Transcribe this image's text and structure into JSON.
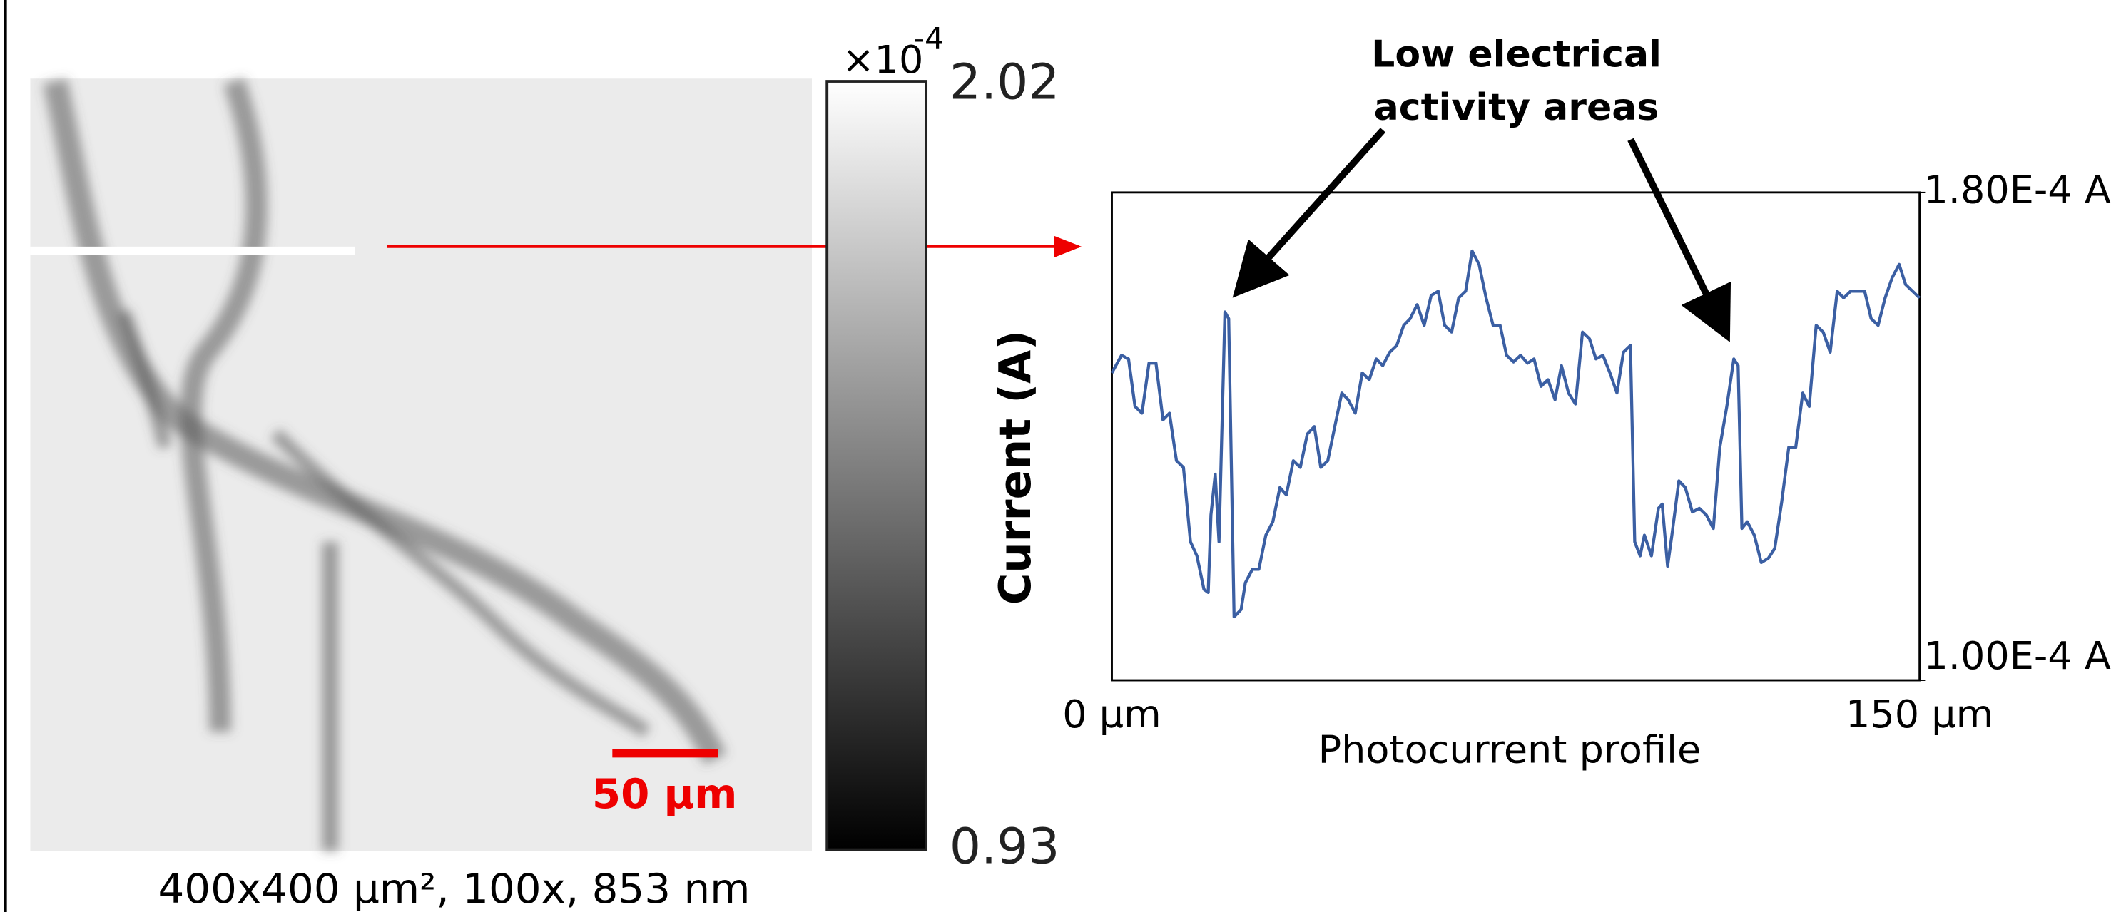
{
  "image": {
    "caption": "400x400 µm², 100x, 853 nm",
    "scale_bar": "50 µm"
  },
  "colorbar": {
    "multiplier": "×10",
    "exponent": "-4",
    "label": "Current (A)",
    "lim": [
      0.93,
      2.02
    ],
    "ticks": [
      0.93,
      2.02
    ]
  },
  "chart_data": {
    "type": "line",
    "xlabel": "Photocurrent profile",
    "annotation": [
      "Low electrical",
      "activity areas"
    ],
    "x": [
      0,
      1.8,
      3.1,
      4.3,
      5.6,
      6.9,
      8.2,
      9.5,
      10.7,
      12.0,
      13.3,
      14.6,
      15.8,
      17.1,
      17.9,
      18.4,
      19.2,
      19.9,
      21.0,
      21.7,
      22.7,
      24.0,
      24.8,
      26.1,
      27.3,
      28.6,
      29.9,
      31.2,
      32.4,
      33.7,
      35.0,
      36.3,
      37.6,
      38.8,
      40.1,
      41.4,
      42.7,
      43.9,
      45.2,
      46.5,
      47.8,
      49.1,
      50.3,
      51.6,
      52.9,
      54.2,
      55.4,
      56.7,
      58.0,
      59.3,
      60.6,
      61.8,
      63.1,
      64.4,
      65.7,
      66.9,
      68.2,
      69.5,
      70.8,
      72.1,
      73.3,
      74.6,
      75.9,
      77.2,
      78.4,
      79.7,
      81.0,
      82.3,
      83.5,
      84.8,
      86.1,
      87.4,
      88.7,
      89.9,
      91.2,
      92.5,
      93.8,
      95.0,
      96.3,
      97.1,
      98.1,
      98.9,
      100.2,
      101.5,
      102.2,
      103.2,
      104.0,
      105.3,
      106.5,
      107.8,
      109.1,
      110.4,
      111.7,
      112.9,
      114.2,
      115.5,
      116.3,
      117.0,
      118.0,
      119.3,
      120.6,
      121.9,
      123.1,
      124.4,
      125.7,
      127.0,
      128.3,
      129.5,
      130.8,
      132.1,
      133.4,
      134.7,
      135.9,
      137.2,
      138.5,
      139.8,
      141.0,
      142.3,
      143.6,
      144.9,
      146.2,
      147.4,
      148.7,
      150.0
    ],
    "series": [
      {
        "color": "#3b5fa3",
        "values": [
          0.0001504,
          0.0001533,
          0.0001527,
          0.0001449,
          0.0001438,
          0.000152,
          0.000152,
          0.0001427,
          0.0001438,
          0.000136,
          0.0001349,
          0.0001227,
          0.0001204,
          0.0001149,
          0.0001144,
          0.0001271,
          0.0001338,
          0.0001227,
          0.0001604,
          0.0001593,
          0.0001104,
          0.0001116,
          0.000116,
          0.0001182,
          0.0001182,
          0.0001238,
          0.000126,
          0.0001316,
          0.0001304,
          0.000136,
          0.0001349,
          0.0001404,
          0.0001416,
          0.0001349,
          0.000136,
          0.0001416,
          0.0001471,
          0.000146,
          0.0001438,
          0.0001504,
          0.0001493,
          0.0001527,
          0.0001516,
          0.0001538,
          0.0001549,
          0.0001582,
          0.0001593,
          0.0001616,
          0.0001582,
          0.0001631,
          0.0001638,
          0.0001582,
          0.0001571,
          0.0001627,
          0.0001638,
          0.0001704,
          0.0001682,
          0.0001627,
          0.0001582,
          0.0001582,
          0.0001533,
          0.0001522,
          0.0001533,
          0.000152,
          0.0001527,
          0.0001482,
          0.0001493,
          0.000146,
          0.0001516,
          0.0001471,
          0.0001453,
          0.0001571,
          0.000156,
          0.0001527,
          0.0001533,
          0.0001504,
          0.0001471,
          0.0001538,
          0.0001549,
          0.0001227,
          0.0001204,
          0.0001238,
          0.0001204,
          0.0001282,
          0.0001289,
          0.0001187,
          0.0001238,
          0.0001327,
          0.0001316,
          0.0001276,
          0.0001282,
          0.0001271,
          0.0001249,
          0.0001382,
          0.0001449,
          0.0001527,
          0.0001516,
          0.0001249,
          0.000126,
          0.0001238,
          0.0001193,
          0.00012,
          0.0001216,
          0.0001293,
          0.0001382,
          0.0001382,
          0.0001471,
          0.0001449,
          0.0001582,
          0.0001571,
          0.0001538,
          0.0001638,
          0.0001627,
          0.0001638,
          0.0001638,
          0.0001638,
          0.0001593,
          0.0001582,
          0.0001627,
          0.000166,
          0.0001682,
          0.0001649,
          0.0001638,
          0.0001627
        ]
      }
    ],
    "xlim": [
      0,
      150
    ],
    "xticks": [
      {
        "value": 0,
        "label": "0 µm"
      },
      {
        "value": 150,
        "label": "150 µm"
      }
    ],
    "ylim": [
      0.0001,
      0.00018
    ],
    "yticks": [
      {
        "value": 0.0001,
        "label": "1.00E-4 A"
      },
      {
        "value": 0.00018,
        "label": "1.80E-4 A"
      }
    ]
  }
}
